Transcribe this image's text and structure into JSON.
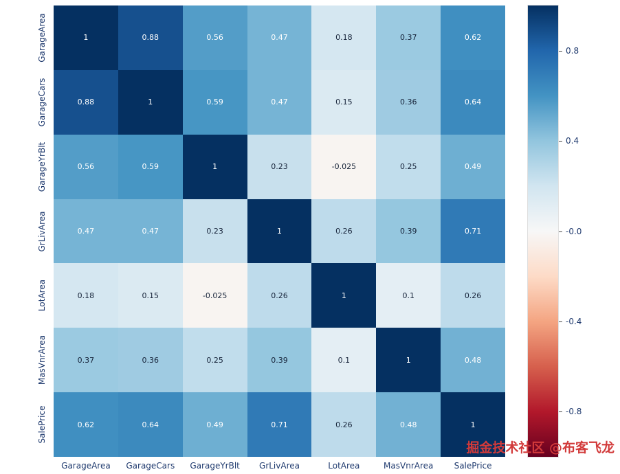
{
  "watermark": "掘金技术社区 @布客飞龙",
  "chart_data": {
    "type": "heatmap",
    "title": "",
    "xlabel": "",
    "ylabel": "",
    "labels": [
      "GarageArea",
      "GarageCars",
      "GarageYrBlt",
      "GrLivArea",
      "LotArea",
      "MasVnrArea",
      "SalePrice"
    ],
    "matrix": [
      [
        1,
        0.88,
        0.56,
        0.47,
        0.18,
        0.37,
        0.62
      ],
      [
        0.88,
        1,
        0.59,
        0.47,
        0.15,
        0.36,
        0.64
      ],
      [
        0.56,
        0.59,
        1,
        0.23,
        -0.025,
        0.25,
        0.49
      ],
      [
        0.47,
        0.47,
        0.23,
        1,
        0.26,
        0.39,
        0.71
      ],
      [
        0.18,
        0.15,
        -0.025,
        0.26,
        1,
        0.1,
        0.26
      ],
      [
        0.37,
        0.36,
        0.25,
        0.39,
        0.1,
        1,
        0.48
      ],
      [
        0.62,
        0.64,
        0.49,
        0.71,
        0.26,
        0.48,
        1
      ]
    ],
    "cell_text": [
      [
        "1",
        "0.88",
        "0.56",
        "0.47",
        "0.18",
        "0.37",
        "0.62"
      ],
      [
        "0.88",
        "1",
        "0.59",
        "0.47",
        "0.15",
        "0.36",
        "0.64"
      ],
      [
        "0.56",
        "0.59",
        "1",
        "0.23",
        "-0.025",
        "0.25",
        "0.49"
      ],
      [
        "0.47",
        "0.47",
        "0.23",
        "1",
        "0.26",
        "0.39",
        "0.71"
      ],
      [
        "0.18",
        "0.15",
        "-0.025",
        "0.26",
        "1",
        "0.1",
        "0.26"
      ],
      [
        "0.37",
        "0.36",
        "0.25",
        "0.39",
        "0.1",
        "1",
        "0.48"
      ],
      [
        "0.62",
        "0.64",
        "0.49",
        "0.71",
        "0.26",
        "0.48",
        "1"
      ]
    ],
    "colormap": {
      "name": "RdBu_r",
      "anchors": [
        [
          -1.0,
          "#67001f"
        ],
        [
          -0.8,
          "#b2182b"
        ],
        [
          -0.6,
          "#d6604d"
        ],
        [
          -0.4,
          "#f4a582"
        ],
        [
          -0.2,
          "#fddbc7"
        ],
        [
          0.0,
          "#f7f7f7"
        ],
        [
          0.2,
          "#d1e5f0"
        ],
        [
          0.4,
          "#92c5de"
        ],
        [
          0.6,
          "#4393c3"
        ],
        [
          0.8,
          "#2166ac"
        ],
        [
          1.0,
          "#053061"
        ]
      ]
    },
    "colorbar": {
      "vmin": -1,
      "vmax": 1,
      "ticks": [
        "0.8",
        "0.4",
        "-0.0",
        "-0.4",
        "-0.8"
      ],
      "tick_values": [
        0.8,
        0.4,
        0.0,
        -0.4,
        -0.8
      ],
      "position": "right"
    },
    "legend": "none",
    "grid": false,
    "text_colors": {
      "dark_cell_text": "#ffffff",
      "light_cell_text": "#152238",
      "tick_label": "#1f3a6e",
      "watermark": "#d23a3a"
    }
  }
}
